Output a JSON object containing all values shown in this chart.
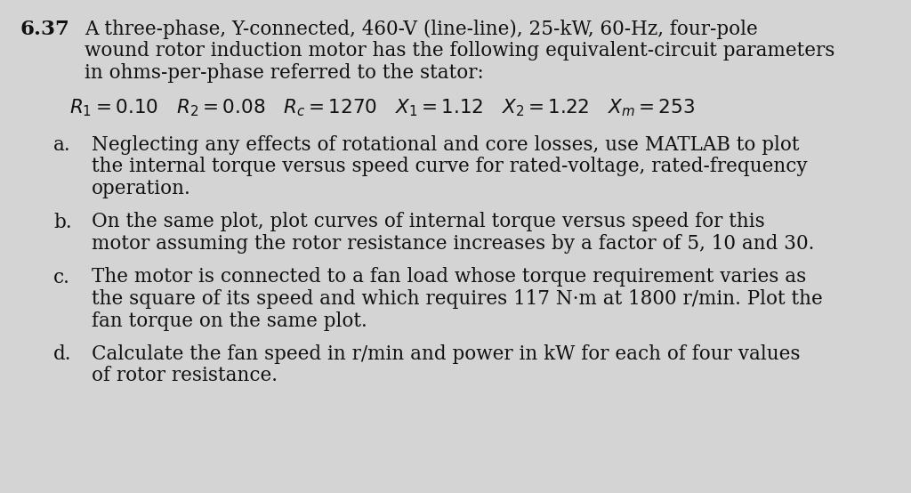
{
  "background_color": "#d4d4d4",
  "problem_number": "6.37",
  "intro_lines": [
    "A three-phase, Y-connected, 460-V (line-line), 25-kW, 60-Hz, four-pole",
    "wound rotor induction motor has the following equivalent-circuit parameters",
    "in ohms-per-phase referred to the stator:"
  ],
  "parts": [
    {
      "label": "a.",
      "lines": [
        "Neglecting any effects of rotational and core losses, use MATLAB to plot",
        "the internal torque versus speed curve for rated-voltage, rated-frequency",
        "operation."
      ]
    },
    {
      "label": "b.",
      "lines": [
        "On the same plot, plot curves of internal torque versus speed for this",
        "motor assuming the rotor resistance increases by a factor of 5, 10 and 30."
      ]
    },
    {
      "label": "c.",
      "lines": [
        "The motor is connected to a fan load whose torque requirement varies as",
        "the square of its speed and which requires 117 N·m at 1800 r/min. Plot the",
        "fan torque on the same plot."
      ]
    },
    {
      "label": "d.",
      "lines": [
        "Calculate the fan speed in r/min and power in kW for each of four values",
        "of rotor resistance."
      ]
    }
  ],
  "text_color": "#111111",
  "main_fontsize": 15.5,
  "param_fontsize": 15.5,
  "num_fontsize": 16.5
}
